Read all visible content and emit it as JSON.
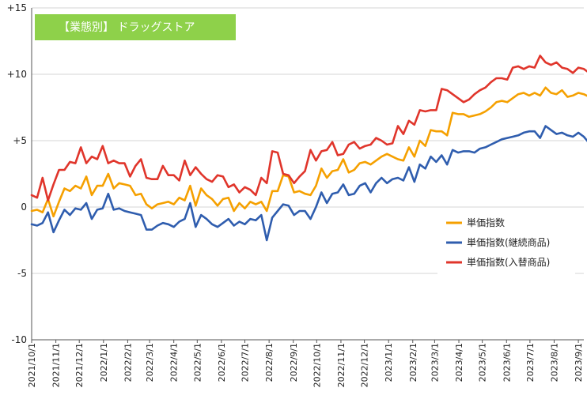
{
  "chart_data": {
    "type": "line",
    "title": "【業態別】 ドラッグストア",
    "title_bg_color": "#8ED14A",
    "ylim": [
      -10,
      15
    ],
    "y_ticks": [
      {
        "value": 15,
        "label": "+15"
      },
      {
        "value": 10,
        "label": "+10"
      },
      {
        "value": 5,
        "label": "+5"
      },
      {
        "value": 0,
        "label": "0"
      },
      {
        "value": -5,
        "label": "-5"
      },
      {
        "value": -10,
        "label": "-10"
      }
    ],
    "grid": "horizontal",
    "legend_position": "right-middle",
    "x_labels": [
      {
        "i": 0,
        "label": "2021/10/1"
      },
      {
        "i": 4.43,
        "label": "2021/11/1"
      },
      {
        "i": 8.71,
        "label": "2021/12/1"
      },
      {
        "i": 13.14,
        "label": "2022/1/1"
      },
      {
        "i": 17.57,
        "label": "2022/2/1"
      },
      {
        "i": 21.57,
        "label": "2022/3/1"
      },
      {
        "i": 26.0,
        "label": "2022/4/1"
      },
      {
        "i": 30.29,
        "label": "2022/5/1"
      },
      {
        "i": 34.71,
        "label": "2022/6/1"
      },
      {
        "i": 39.0,
        "label": "2022/7/1"
      },
      {
        "i": 43.43,
        "label": "2022/8/1"
      },
      {
        "i": 47.86,
        "label": "2022/9/1"
      },
      {
        "i": 52.14,
        "label": "2022/10/1"
      },
      {
        "i": 56.57,
        "label": "2022/11/1"
      },
      {
        "i": 60.86,
        "label": "2022/12/1"
      },
      {
        "i": 65.29,
        "label": "2023/1/1"
      },
      {
        "i": 69.71,
        "label": "2023/2/1"
      },
      {
        "i": 73.71,
        "label": "2023/3/1"
      },
      {
        "i": 78.14,
        "label": "2023/4/1"
      },
      {
        "i": 82.43,
        "label": "2023/5/1"
      },
      {
        "i": 86.86,
        "label": "2023/6/1"
      },
      {
        "i": 91.14,
        "label": "2023/7/1"
      },
      {
        "i": 95.57,
        "label": "2023/8/1"
      },
      {
        "i": 100.0,
        "label": "2023/9/1"
      }
    ],
    "x_count": 102,
    "series": [
      {
        "name": "単価指数",
        "color": "#F5A000",
        "values": [
          -0.3,
          -0.2,
          -0.4,
          0.6,
          -0.7,
          0.4,
          1.4,
          1.2,
          1.6,
          1.4,
          2.3,
          0.9,
          1.6,
          1.6,
          2.5,
          1.4,
          1.8,
          1.7,
          1.6,
          0.9,
          1.0,
          0.2,
          -0.1,
          0.2,
          0.3,
          0.4,
          0.2,
          0.7,
          0.5,
          1.6,
          0.1,
          1.4,
          0.9,
          0.6,
          0.1,
          0.6,
          0.7,
          -0.3,
          0.3,
          -0.1,
          0.4,
          0.2,
          0.4,
          -0.3,
          1.2,
          1.2,
          2.4,
          2.3,
          1.1,
          1.2,
          1.0,
          0.9,
          1.6,
          2.9,
          2.2,
          2.7,
          2.8,
          3.6,
          2.6,
          2.8,
          3.3,
          3.4,
          3.2,
          3.5,
          3.8,
          4.0,
          3.8,
          3.6,
          3.5,
          4.5,
          3.8,
          5.0,
          4.6,
          5.8,
          5.7,
          5.7,
          5.4,
          7.1,
          7.0,
          7.0,
          6.8,
          6.9,
          7.0,
          7.2,
          7.5,
          7.9,
          8.0,
          7.9,
          8.2,
          8.5,
          8.6,
          8.4,
          8.6,
          8.4,
          9.0,
          8.6,
          8.5,
          8.8,
          8.3,
          8.4,
          8.6,
          8.5,
          8.3
        ]
      },
      {
        "name": "単価指数(継続商品)",
        "color": "#2F5DAE",
        "values": [
          -1.3,
          -1.4,
          -1.2,
          -0.4,
          -1.9,
          -1.0,
          -0.2,
          -0.6,
          -0.1,
          -0.2,
          0.3,
          -0.9,
          -0.2,
          -0.1,
          1.0,
          -0.2,
          -0.1,
          -0.3,
          -0.4,
          -0.5,
          -0.6,
          -1.7,
          -1.7,
          -1.4,
          -1.2,
          -1.3,
          -1.5,
          -1.1,
          -0.9,
          0.3,
          -1.5,
          -0.6,
          -0.9,
          -1.3,
          -1.5,
          -1.2,
          -0.9,
          -1.4,
          -1.1,
          -1.3,
          -0.9,
          -1.0,
          -0.6,
          -2.5,
          -0.8,
          -0.3,
          0.2,
          0.1,
          -0.6,
          -0.3,
          -0.3,
          -0.9,
          0.0,
          1.1,
          0.3,
          1.0,
          1.1,
          1.7,
          0.9,
          1.0,
          1.6,
          1.8,
          1.1,
          1.8,
          2.2,
          1.8,
          2.1,
          2.2,
          2.0,
          3.0,
          1.9,
          3.2,
          2.9,
          3.8,
          3.4,
          3.9,
          3.2,
          4.3,
          4.1,
          4.2,
          4.2,
          4.1,
          4.4,
          4.5,
          4.7,
          4.9,
          5.1,
          5.2,
          5.3,
          5.4,
          5.6,
          5.7,
          5.7,
          5.2,
          6.1,
          5.8,
          5.5,
          5.6,
          5.4,
          5.3,
          5.6,
          5.3,
          4.8
        ]
      },
      {
        "name": "単価指数(入替商品)",
        "color": "#E0352B",
        "values": [
          0.9,
          0.7,
          2.2,
          0.5,
          1.7,
          2.8,
          2.8,
          3.4,
          3.3,
          4.5,
          3.3,
          3.8,
          3.6,
          4.6,
          3.3,
          3.5,
          3.3,
          3.3,
          2.3,
          3.1,
          3.6,
          2.2,
          2.1,
          2.1,
          3.1,
          2.4,
          2.4,
          2.0,
          3.5,
          2.4,
          3.0,
          2.5,
          2.1,
          1.9,
          2.4,
          2.3,
          1.5,
          1.7,
          1.1,
          1.5,
          1.3,
          0.9,
          2.2,
          1.8,
          4.2,
          4.1,
          2.5,
          2.4,
          1.8,
          2.3,
          2.7,
          4.3,
          3.5,
          4.2,
          4.3,
          4.9,
          3.9,
          4.0,
          4.7,
          4.9,
          4.4,
          4.6,
          4.7,
          5.2,
          5.0,
          4.7,
          4.8,
          6.1,
          5.5,
          6.5,
          6.2,
          7.3,
          7.2,
          7.3,
          7.3,
          8.9,
          8.8,
          8.5,
          8.2,
          7.9,
          8.1,
          8.5,
          8.8,
          9.0,
          9.4,
          9.7,
          9.7,
          9.6,
          10.5,
          10.6,
          10.4,
          10.6,
          10.5,
          11.4,
          10.9,
          10.7,
          10.9,
          10.5,
          10.4,
          10.1,
          10.5,
          10.4,
          10.1
        ]
      }
    ]
  }
}
